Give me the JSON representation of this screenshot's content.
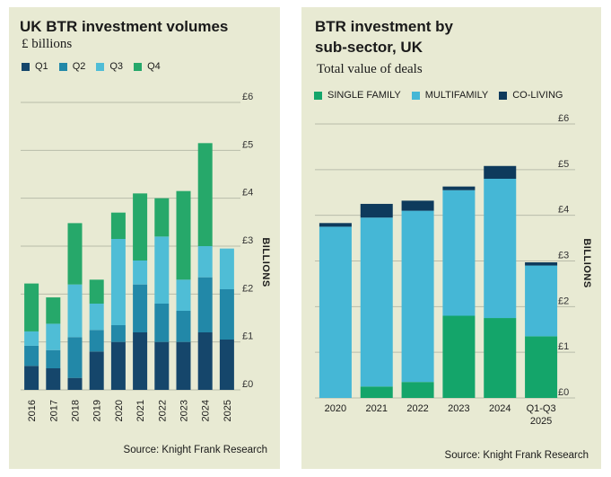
{
  "colors": {
    "panel_bg": "#e8ead3",
    "gridline": "#b9bcaa",
    "q1": "#15466b",
    "q2": "#2288a8",
    "q3": "#4fbdd6",
    "q4": "#26a86a",
    "single_family": "#14a56a",
    "multifamily": "#45b7d6",
    "co_living": "#0e3a5c"
  },
  "chart_data": [
    {
      "type": "bar",
      "stacked": true,
      "title": "UK BTR investment volumes",
      "subtitle": "£ billions",
      "categories": [
        "2016",
        "2017",
        "2018",
        "2019",
        "2020",
        "2021",
        "2022",
        "2023",
        "2024",
        "2025"
      ],
      "series": [
        {
          "name": "Q1",
          "color_key": "q1",
          "values": [
            0.5,
            0.45,
            0.25,
            0.8,
            1.0,
            1.2,
            1.0,
            1.0,
            1.2,
            1.05
          ]
        },
        {
          "name": "Q2",
          "color_key": "q2",
          "values": [
            0.42,
            0.38,
            0.85,
            0.45,
            0.35,
            1.0,
            0.8,
            0.65,
            1.15,
            1.05
          ]
        },
        {
          "name": "Q3",
          "color_key": "q3",
          "values": [
            0.3,
            0.55,
            1.1,
            0.55,
            1.8,
            0.5,
            1.4,
            0.65,
            0.65,
            0.85
          ]
        },
        {
          "name": "Q4",
          "color_key": "q4",
          "values": [
            1.0,
            0.55,
            1.28,
            0.5,
            0.55,
            1.4,
            0.8,
            1.85,
            2.15,
            0
          ]
        }
      ],
      "ylim": [
        0,
        6
      ],
      "yticks": [
        "£0",
        "£1",
        "£2",
        "£3",
        "£4",
        "£5",
        "£6"
      ],
      "ylabel": "BILLIONS",
      "xlabel": "",
      "grid": true,
      "source": "Source: Knight Frank Research"
    },
    {
      "type": "bar",
      "stacked": true,
      "title_lines": [
        "BTR investment by",
        "sub-sector, UK"
      ],
      "subtitle": "Total value of deals",
      "categories": [
        "2020",
        "2021",
        "2022",
        "2023",
        "2024",
        "Q1-Q3 2025"
      ],
      "category_lines": [
        [
          "2020"
        ],
        [
          "2021"
        ],
        [
          "2022"
        ],
        [
          "2023"
        ],
        [
          "2024"
        ],
        [
          "Q1-Q3",
          "2025"
        ]
      ],
      "series": [
        {
          "name": "SINGLE FAMILY",
          "color_key": "single_family",
          "values": [
            0,
            0.25,
            0.35,
            1.8,
            1.75,
            1.35
          ]
        },
        {
          "name": "MULTIFAMILY",
          "color_key": "multifamily",
          "values": [
            3.75,
            3.7,
            3.75,
            2.75,
            3.05,
            1.55
          ]
        },
        {
          "name": "CO-LIVING",
          "color_key": "co_living",
          "values": [
            0.08,
            0.3,
            0.22,
            0.08,
            0.28,
            0.07
          ]
        }
      ],
      "ylim": [
        0,
        6
      ],
      "yticks": [
        "£0",
        "£1",
        "£2",
        "£3",
        "£4",
        "£5",
        "£6"
      ],
      "ylabel": "BILLIONS",
      "xlabel": "",
      "grid": true,
      "source": "Source: Knight Frank Research"
    }
  ]
}
